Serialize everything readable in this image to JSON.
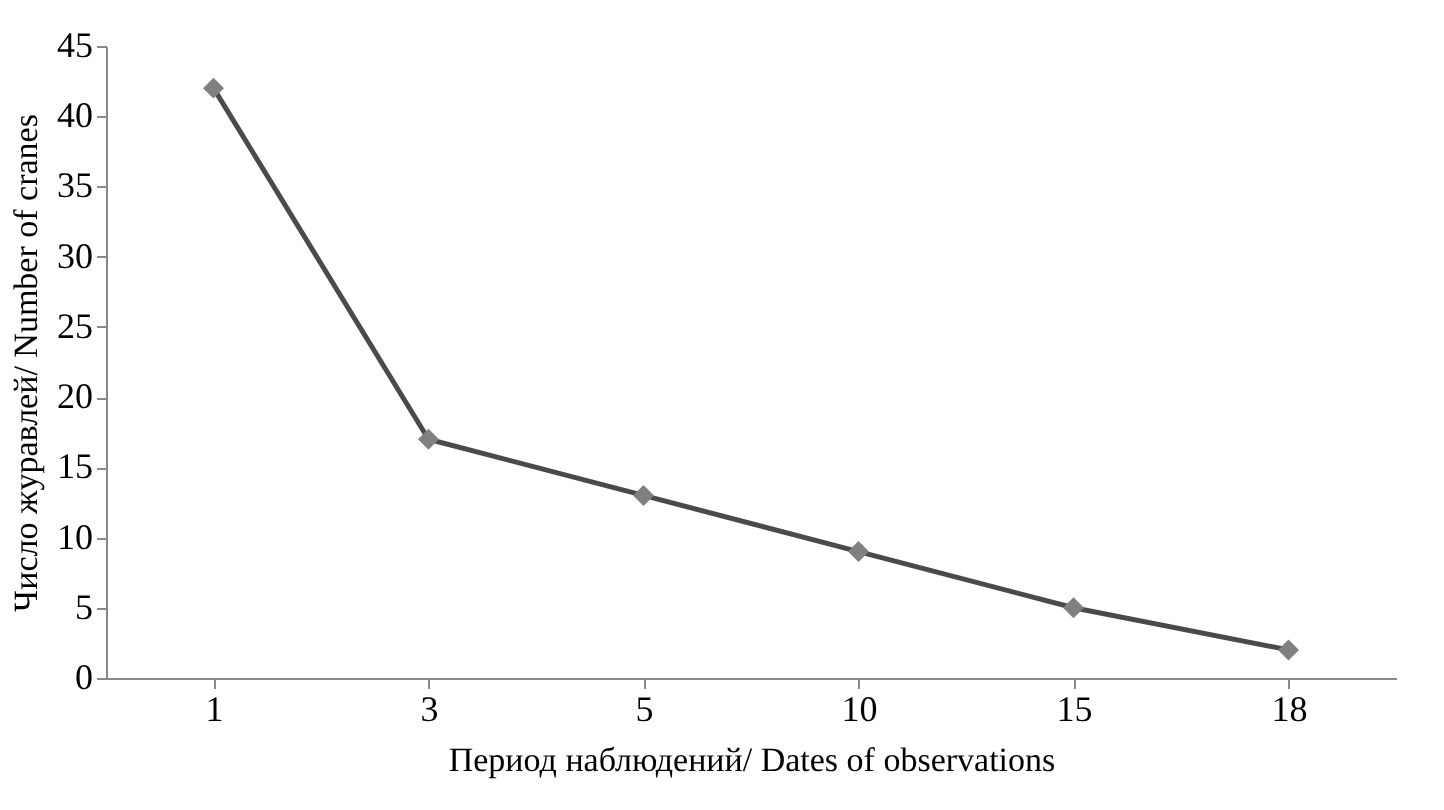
{
  "chart_data": {
    "type": "line",
    "xlabel": "Период наблюдений/ Dates of observations",
    "ylabel": "Число журавлей/ Number of cranes",
    "categories": [
      "1",
      "3",
      "5",
      "10",
      "15",
      "18"
    ],
    "series": [
      {
        "color": "#4a4a4a",
        "values": [
          42,
          17,
          13,
          9,
          5,
          2
        ]
      }
    ],
    "ylim": [
      0,
      45
    ],
    "yticks": [
      0,
      5,
      10,
      15,
      20,
      25,
      30,
      35,
      40,
      45
    ],
    "grid": false,
    "marker": "diamond",
    "line_style": "solid"
  }
}
